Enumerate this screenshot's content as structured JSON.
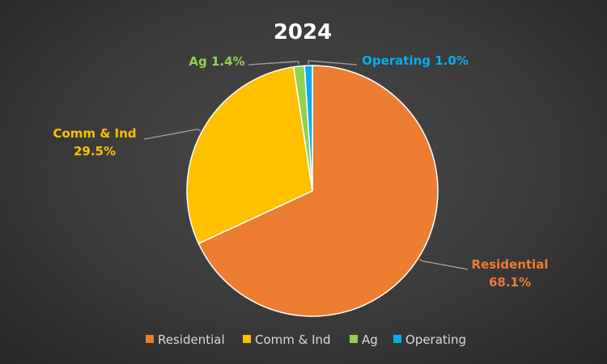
{
  "chart_data": {
    "type": "pie",
    "title": "2024",
    "slices": [
      {
        "name": "Residential",
        "value": 68.1,
        "label": "68.1%",
        "color": "#ed7d31"
      },
      {
        "name": "Comm & Ind",
        "value": 29.5,
        "label": "29.5%",
        "color": "#ffc000"
      },
      {
        "name": "Ag",
        "value": 1.4,
        "label": "1.4%",
        "color": "#92d050"
      },
      {
        "name": "Operating",
        "value": 1.0,
        "label": "1.0%",
        "color": "#00b0f0"
      }
    ],
    "legend_position": "bottom",
    "leader_line_color": "#a6a6a6"
  }
}
